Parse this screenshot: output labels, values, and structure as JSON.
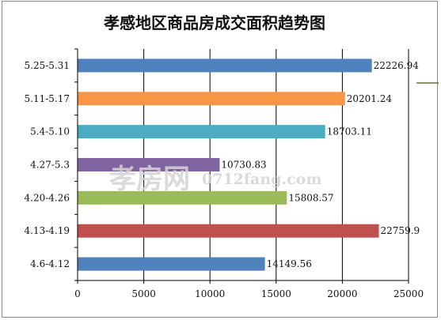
{
  "chart_data": {
    "type": "bar",
    "orientation": "horizontal",
    "title": "孝感地区商品房成交面积趋势图",
    "categories": [
      "5.25-5.31",
      "5.11-5.17",
      "5.4-5.10",
      "4.27-5.3",
      "4.20-4.26",
      "4.13-4.19",
      "4.6-4.12"
    ],
    "values": [
      22226.94,
      20201.24,
      18703.11,
      10730.83,
      15808.57,
      22759.9,
      14149.56
    ],
    "value_labels": [
      "22226.94",
      "20201.24",
      "18703.11",
      "10730.83",
      "15808.57",
      "22759.9",
      "14149.56"
    ],
    "colors": [
      "#4f81bd",
      "#f79646",
      "#4bacc6",
      "#8064a2",
      "#9bbb59",
      "#c0504d",
      "#4f81bd"
    ],
    "xlim": [
      0,
      25000
    ],
    "xticks": [
      0,
      5000,
      10000,
      15000,
      20000,
      25000
    ],
    "xtick_labels": [
      "0",
      "5000",
      "10000",
      "15000",
      "20000",
      "25000"
    ],
    "grid": true,
    "legend": "none"
  },
  "watermark": {
    "main": "孝房网",
    "sub": "0712fang.com"
  }
}
